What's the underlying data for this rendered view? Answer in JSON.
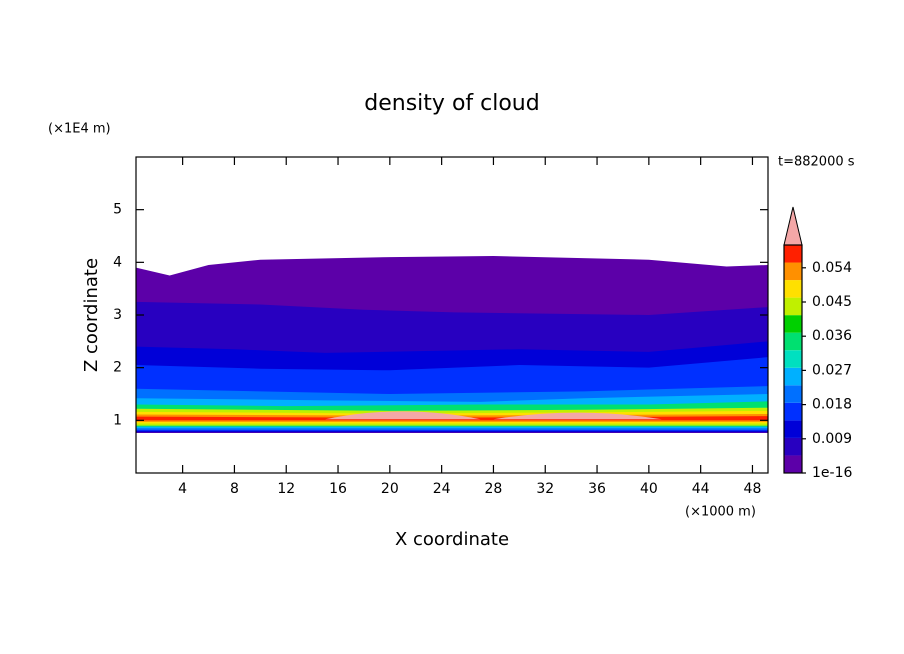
{
  "chart_data": {
    "type": "contour",
    "title": "density of cloud",
    "x_label": "X coordinate",
    "y_label": "Z coordinate",
    "x_unit": "(×1000 m)",
    "y_unit": "(×1E4 m)",
    "time_label": "t=882000 s",
    "xlim": [
      0.4,
      49.2
    ],
    "xticks": [
      4,
      8,
      12,
      16,
      20,
      24,
      28,
      32,
      36,
      40,
      44,
      48
    ],
    "ylim": [
      0,
      6
    ],
    "yticks": [
      1,
      2,
      3,
      4,
      5
    ],
    "colorbar": {
      "lim": [
        0,
        0.06
      ],
      "ticks": [
        1e-16,
        0.009,
        0.018,
        0.027,
        0.036,
        0.045,
        0.054
      ],
      "colors": [
        "#5c00a8",
        "#2800c0",
        "#0000d8",
        "#0030ff",
        "#0070ff",
        "#00b0ff",
        "#00e0c0",
        "#00e070",
        "#00d000",
        "#c0f000",
        "#ffe000",
        "#ff9000",
        "#ff2000"
      ],
      "extend_color": "#f4a7a7"
    }
  }
}
